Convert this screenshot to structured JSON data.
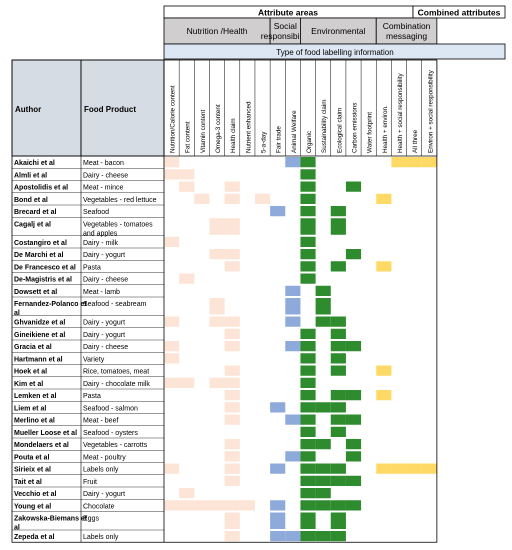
{
  "chart_data": {
    "type": "heatmap",
    "header": {
      "top_left": "Attribute areas",
      "top_right": "Combined attributes",
      "groups": [
        "Nutrition /Health",
        "Social responsibility",
        "Environmental",
        "Combination messaging"
      ],
      "subheader": "Type of food labelling information",
      "author_col": "Author",
      "product_col": "Food Product"
    },
    "categories": [
      "Nutrition/Calorie content",
      "Fat content",
      "Vitamin content",
      "Omega-3 content",
      "Health claim",
      "Nutrient enhanced",
      "5-a-day",
      "Fair trade",
      "Animal Welfare",
      "Organic",
      "Sustainability claim",
      "Ecological claim",
      "Carbon emissions",
      "Water footprint",
      "Health + environ.",
      "Health + social responsibility",
      "All three",
      "Environ + social responsibility"
    ],
    "category_groups": [
      "nutrition",
      "nutrition",
      "nutrition",
      "nutrition",
      "nutrition",
      "nutrition",
      "nutrition",
      "social",
      "social",
      "env",
      "env",
      "env",
      "env",
      "env",
      "combo",
      "combo",
      "combo",
      "combo"
    ],
    "group_colors": {
      "nutrition": "#fce4d6",
      "social": "#8eaadb",
      "env": "#2e8b2e",
      "combo": "#ffd966"
    },
    "header_color": "#d0cece",
    "subheader_color": "#dde7f3",
    "author_header_color": "#d6dce4",
    "rows": [
      {
        "author": "Akaichi et al",
        "product": "Meat - bacon",
        "cells": [
          0,
          8,
          9,
          15,
          16,
          17
        ]
      },
      {
        "author": "Almli et al",
        "product": "Dairy - cheese",
        "cells": [
          0,
          1,
          9
        ]
      },
      {
        "author": "Apostolidis et al",
        "product": "Meat - mince",
        "cells": [
          1,
          4,
          9,
          12
        ]
      },
      {
        "author": "Bond et al",
        "product": "Vegetables - red lettuce",
        "cells": [
          2,
          4,
          6,
          9,
          14
        ]
      },
      {
        "author": "Brecard et al",
        "product": "Seafood",
        "cells": [
          7,
          9,
          11
        ]
      },
      {
        "author": "Cagalj et al",
        "product": "Vegetables - tomatoes and apples",
        "cells": [
          3,
          4,
          9,
          11
        ]
      },
      {
        "author": "Costangiro et al",
        "product": "Dairy - milk",
        "cells": [
          0,
          9
        ]
      },
      {
        "author": "De Marchi et al",
        "product": "Dairy - yogurt",
        "cells": [
          3,
          4,
          9,
          12
        ]
      },
      {
        "author": "De Francesco et al",
        "product": "Pasta",
        "cells": [
          4,
          9,
          11,
          14
        ]
      },
      {
        "author": "De-Magistris et al",
        "product": "Dairy - cheese",
        "cells": [
          1,
          9
        ]
      },
      {
        "author": "Dowsett et al",
        "product": "Meat - lamb",
        "cells": [
          8,
          10
        ]
      },
      {
        "author": "Fernandez-Polanco et al",
        "product": "Seafood - seabream",
        "cells": [
          3,
          8,
          10
        ]
      },
      {
        "author": "Ghvanidze et al",
        "product": "Dairy - yogurt",
        "cells": [
          0,
          3,
          4,
          8,
          10,
          11
        ]
      },
      {
        "author": "Gineikiene et al",
        "product": "Dairy - yogurt",
        "cells": [
          4,
          9,
          11
        ]
      },
      {
        "author": "Gracia et al",
        "product": "Dairy - cheese",
        "cells": [
          0,
          4,
          8,
          9,
          11,
          12
        ]
      },
      {
        "author": "Hartmann et al",
        "product": "Variety",
        "cells": [
          0,
          9,
          11
        ]
      },
      {
        "author": "Hoek et al",
        "product": "Rice, tomatoes, meat",
        "cells": [
          4,
          9,
          11,
          14
        ]
      },
      {
        "author": "Kim et al",
        "product": "Dairy - chocolate milk",
        "cells": [
          0,
          1,
          3,
          4,
          9
        ]
      },
      {
        "author": "Lemken et al",
        "product": "Pasta",
        "cells": [
          4,
          9,
          11,
          12,
          14
        ]
      },
      {
        "author": "Liem et al",
        "product": "Seafood - salmon",
        "cells": [
          4,
          7,
          9,
          10,
          11
        ]
      },
      {
        "author": "Merlino et al",
        "product": "Meat - beef",
        "cells": [
          4,
          8,
          9,
          11,
          12
        ]
      },
      {
        "author": "Mueller Loose et al",
        "product": "Seafood - oysters",
        "cells": [
          9,
          11
        ]
      },
      {
        "author": "Mondelaers et al",
        "product": "Vegetables - carrotts",
        "cells": [
          4,
          9,
          10,
          12
        ]
      },
      {
        "author": "Pouta et al",
        "product": "Meat - poultry",
        "cells": [
          4,
          8,
          9,
          12
        ]
      },
      {
        "author": "Sirieix et al",
        "product": "Labels only",
        "cells": [
          0,
          4,
          7,
          9,
          10,
          11,
          14,
          15,
          16,
          17
        ]
      },
      {
        "author": "Tait et al",
        "product": "Fruit",
        "cells": [
          4,
          9,
          10,
          11,
          12
        ]
      },
      {
        "author": "Vecchio et al",
        "product": "Dairy - yogurt",
        "cells": [
          1,
          9,
          10
        ]
      },
      {
        "author": "Young et al",
        "product": "Chocolate",
        "cells": [
          0,
          1,
          2,
          3,
          4,
          5,
          7,
          9,
          10,
          11,
          12
        ]
      },
      {
        "author": "Zakowska-Biemans et al",
        "product": "Eggs",
        "cells": [
          4,
          7,
          9,
          11
        ]
      },
      {
        "author": "Zepeda et al",
        "product": "Labels only",
        "cells": [
          4,
          7,
          8,
          9,
          10,
          11
        ]
      }
    ]
  }
}
